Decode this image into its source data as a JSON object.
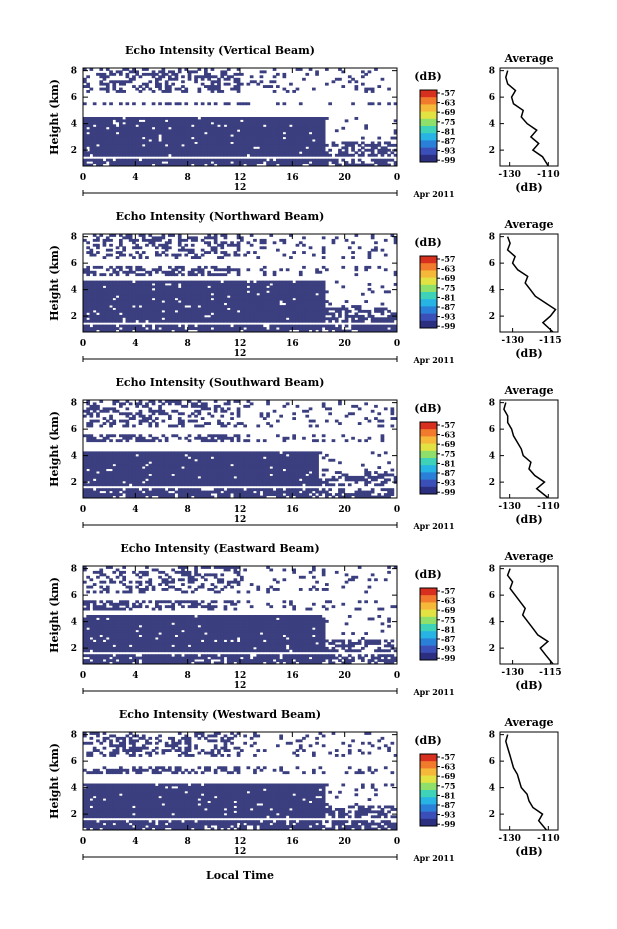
{
  "colors": {
    "echo_fill": "#3b3f7f",
    "profile_line": "#000000",
    "colormap": [
      "#2c2f80",
      "#3b4fb8",
      "#2a7fd8",
      "#27b3e3",
      "#3ed3b8",
      "#8fe06a",
      "#e3e243",
      "#f5b838",
      "#f27a2d",
      "#d7301f"
    ]
  },
  "common": {
    "colorbar_unit": "(dB)",
    "colorbar_ticks": [
      "-57",
      "-63",
      "-69",
      "-75",
      "-81",
      "-87",
      "-93",
      "-99"
    ],
    "ylabel": "Height (km)",
    "yticks": [
      "2",
      "4",
      "6",
      "8"
    ],
    "xticks": [
      "0",
      "4",
      "8",
      "12",
      "16",
      "20",
      "0"
    ],
    "day_label": "12",
    "month_label": "Apr 2011",
    "avg_title": "Average",
    "avg_xlabel": "(dB)",
    "avg_yticks": [
      "2",
      "4",
      "6",
      "8"
    ],
    "xlabel": "Local Time"
  },
  "chart_data": [
    {
      "type": "heatmap",
      "title": "Echo Intensity (Vertical Beam)",
      "x_range_hours": [
        0,
        24
      ],
      "y_range_km": [
        0.8,
        8.2
      ],
      "colorbar_range_db": [
        -99,
        -57
      ],
      "echo_layers_km": [
        [
          0.8,
          1.4
        ],
        [
          1.6,
          4.5
        ],
        [
          5.4,
          5.7
        ],
        [
          6.4,
          8.2
        ]
      ],
      "echo_end_hour": 18.5,
      "average_profile": {
        "xticks": [
          "-130",
          "-110"
        ],
        "xlim": [
          -135,
          -105
        ],
        "height_km": [
          0.8,
          1.5,
          2.0,
          2.5,
          3.0,
          3.5,
          4.0,
          4.5,
          5.0,
          5.5,
          6.0,
          6.5,
          7.0,
          7.5,
          8.0
        ],
        "value_db": [
          -110,
          -113,
          -118,
          -115,
          -119,
          -116,
          -121,
          -124,
          -123,
          -128,
          -129,
          -127,
          -131,
          -132,
          -131
        ]
      }
    },
    {
      "type": "heatmap",
      "title": "Echo Intensity (Northward Beam)",
      "x_range_hours": [
        0,
        24
      ],
      "y_range_km": [
        0.8,
        8.2
      ],
      "colorbar_range_db": [
        -99,
        -57
      ],
      "echo_layers_km": [
        [
          0.8,
          1.4
        ],
        [
          1.6,
          4.6
        ],
        [
          5.0,
          5.8
        ],
        [
          6.4,
          8.2
        ]
      ],
      "echo_end_hour": 18.5,
      "average_profile": {
        "xticks": [
          "-130",
          "-115"
        ],
        "xlim": [
          -135,
          -112
        ],
        "height_km": [
          0.8,
          1.5,
          2.0,
          2.5,
          3.0,
          3.5,
          4.0,
          4.5,
          5.0,
          5.5,
          6.0,
          6.5,
          7.0,
          7.5,
          8.0
        ],
        "value_db": [
          -114,
          -118,
          -115,
          -113,
          -117,
          -121,
          -123,
          -125,
          -124,
          -128,
          -130,
          -129,
          -132,
          -131,
          -132
        ]
      }
    },
    {
      "type": "heatmap",
      "title": "Echo Intensity (Southward Beam)",
      "x_range_hours": [
        0,
        24
      ],
      "y_range_km": [
        0.8,
        8.2
      ],
      "colorbar_range_db": [
        -99,
        -57
      ],
      "echo_layers_km": [
        [
          0.8,
          1.5
        ],
        [
          1.7,
          4.3
        ],
        [
          5.0,
          5.6
        ],
        [
          6.2,
          8.2
        ]
      ],
      "echo_end_hour": 18.0,
      "average_profile": {
        "xticks": [
          "-130",
          "-110"
        ],
        "xlim": [
          -135,
          -105
        ],
        "height_km": [
          0.8,
          1.5,
          2.0,
          2.5,
          3.0,
          3.5,
          4.0,
          4.5,
          5.0,
          5.5,
          6.0,
          6.5,
          7.0,
          7.5,
          8.0
        ],
        "value_db": [
          -110,
          -116,
          -112,
          -117,
          -120,
          -119,
          -123,
          -124,
          -126,
          -128,
          -129,
          -131,
          -131,
          -133,
          -132
        ]
      }
    },
    {
      "type": "heatmap",
      "title": "Echo Intensity (Eastward Beam)",
      "x_range_hours": [
        0,
        24
      ],
      "y_range_km": [
        0.8,
        8.2
      ],
      "colorbar_range_db": [
        -99,
        -57
      ],
      "echo_layers_km": [
        [
          0.8,
          1.5
        ],
        [
          1.8,
          4.5
        ],
        [
          4.8,
          5.6
        ],
        [
          6.2,
          8.2
        ]
      ],
      "echo_end_hour": 18.5,
      "average_profile": {
        "xticks": [
          "-130",
          "-115"
        ],
        "xlim": [
          -135,
          -112
        ],
        "height_km": [
          0.8,
          1.5,
          2.0,
          2.5,
          3.0,
          3.5,
          4.0,
          4.5,
          5.0,
          5.5,
          6.0,
          6.5,
          7.0,
          7.5,
          8.0
        ],
        "value_db": [
          -114,
          -117,
          -119,
          -116,
          -120,
          -122,
          -124,
          -126,
          -125,
          -127,
          -129,
          -131,
          -130,
          -132,
          -131
        ]
      }
    },
    {
      "type": "heatmap",
      "title": "Echo Intensity (Westward Beam)",
      "x_range_hours": [
        0,
        24
      ],
      "y_range_km": [
        0.8,
        8.2
      ],
      "colorbar_range_db": [
        -99,
        -57
      ],
      "echo_layers_km": [
        [
          0.8,
          1.5
        ],
        [
          1.7,
          4.4
        ],
        [
          5.0,
          5.7
        ],
        [
          6.4,
          8.2
        ]
      ],
      "echo_end_hour": 18.5,
      "average_profile": {
        "xticks": [
          "-130",
          "-110"
        ],
        "xlim": [
          -135,
          -105
        ],
        "height_km": [
          0.8,
          1.5,
          2.0,
          2.5,
          3.0,
          3.5,
          4.0,
          4.5,
          5.0,
          5.5,
          6.0,
          6.5,
          7.0,
          7.5,
          8.0
        ],
        "value_db": [
          -111,
          -115,
          -113,
          -118,
          -120,
          -121,
          -124,
          -125,
          -126,
          -128,
          -129,
          -130,
          -131,
          -132,
          -131
        ]
      }
    }
  ]
}
